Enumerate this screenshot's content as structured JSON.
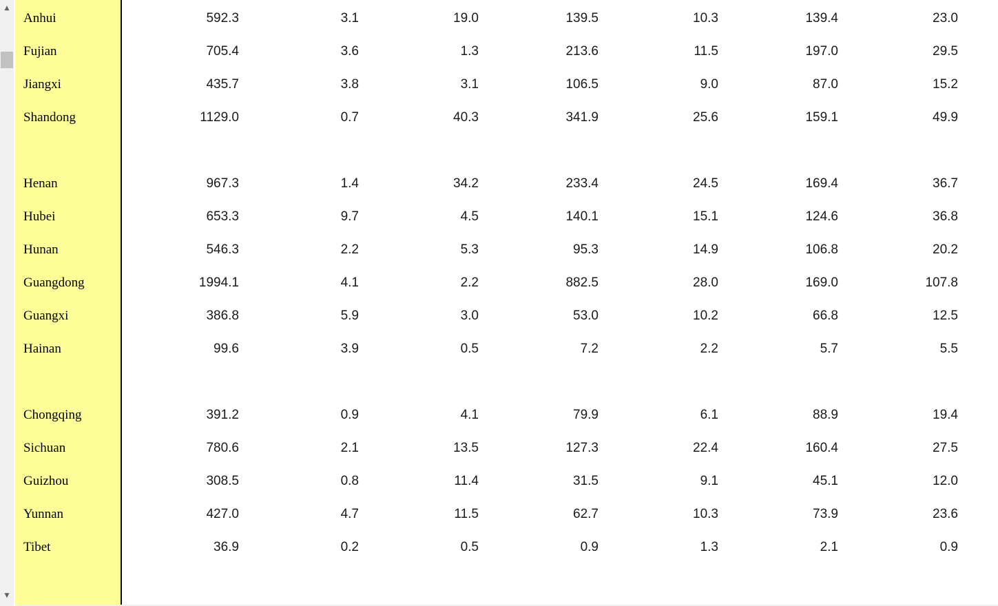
{
  "scrollbar": {
    "up_arrow": "▲",
    "down_arrow": "▼"
  },
  "rows": [
    {
      "name": "Anhui",
      "values": [
        "592.3",
        "3.1",
        "19.0",
        "139.5",
        "10.3",
        "139.4",
        "23.0"
      ]
    },
    {
      "name": "Fujian",
      "values": [
        "705.4",
        "3.6",
        "1.3",
        "213.6",
        "11.5",
        "197.0",
        "29.5"
      ]
    },
    {
      "name": "Jiangxi",
      "values": [
        "435.7",
        "3.8",
        "3.1",
        "106.5",
        "9.0",
        "87.0",
        "15.2"
      ]
    },
    {
      "name": "Shandong",
      "values": [
        "1129.0",
        "0.7",
        "40.3",
        "341.9",
        "25.6",
        "159.1",
        "49.9"
      ]
    },
    {
      "spacer": true
    },
    {
      "name": "Henan",
      "values": [
        "967.3",
        "1.4",
        "34.2",
        "233.4",
        "24.5",
        "169.4",
        "36.7"
      ]
    },
    {
      "name": "Hubei",
      "values": [
        "653.3",
        "9.7",
        "4.5",
        "140.1",
        "15.1",
        "124.6",
        "36.8"
      ]
    },
    {
      "name": "Hunan",
      "values": [
        "546.3",
        "2.2",
        "5.3",
        "95.3",
        "14.9",
        "106.8",
        "20.2"
      ]
    },
    {
      "name": "Guangdong",
      "values": [
        "1994.1",
        "4.1",
        "2.2",
        "882.5",
        "28.0",
        "169.0",
        "107.8"
      ]
    },
    {
      "name": "Guangxi",
      "values": [
        "386.8",
        "5.9",
        "3.0",
        "53.0",
        "10.2",
        "66.8",
        "12.5"
      ]
    },
    {
      "name": "Hainan",
      "values": [
        "99.6",
        "3.9",
        "0.5",
        "7.2",
        "2.2",
        "5.7",
        "5.5"
      ]
    },
    {
      "spacer": true
    },
    {
      "name": "Chongqing",
      "values": [
        "391.2",
        "0.9",
        "4.1",
        "79.9",
        "6.1",
        "88.9",
        "19.4"
      ]
    },
    {
      "name": "Sichuan",
      "values": [
        "780.6",
        "2.1",
        "13.5",
        "127.3",
        "22.4",
        "160.4",
        "27.5"
      ]
    },
    {
      "name": "Guizhou",
      "values": [
        "308.5",
        "0.8",
        "11.4",
        "31.5",
        "9.1",
        "45.1",
        "12.0"
      ]
    },
    {
      "name": "Yunnan",
      "values": [
        "427.0",
        "4.7",
        "11.5",
        "62.7",
        "10.3",
        "73.9",
        "23.6"
      ]
    },
    {
      "name": "Tibet",
      "values": [
        "36.9",
        "0.2",
        "0.5",
        "0.9",
        "1.3",
        "2.1",
        "0.9"
      ]
    }
  ]
}
